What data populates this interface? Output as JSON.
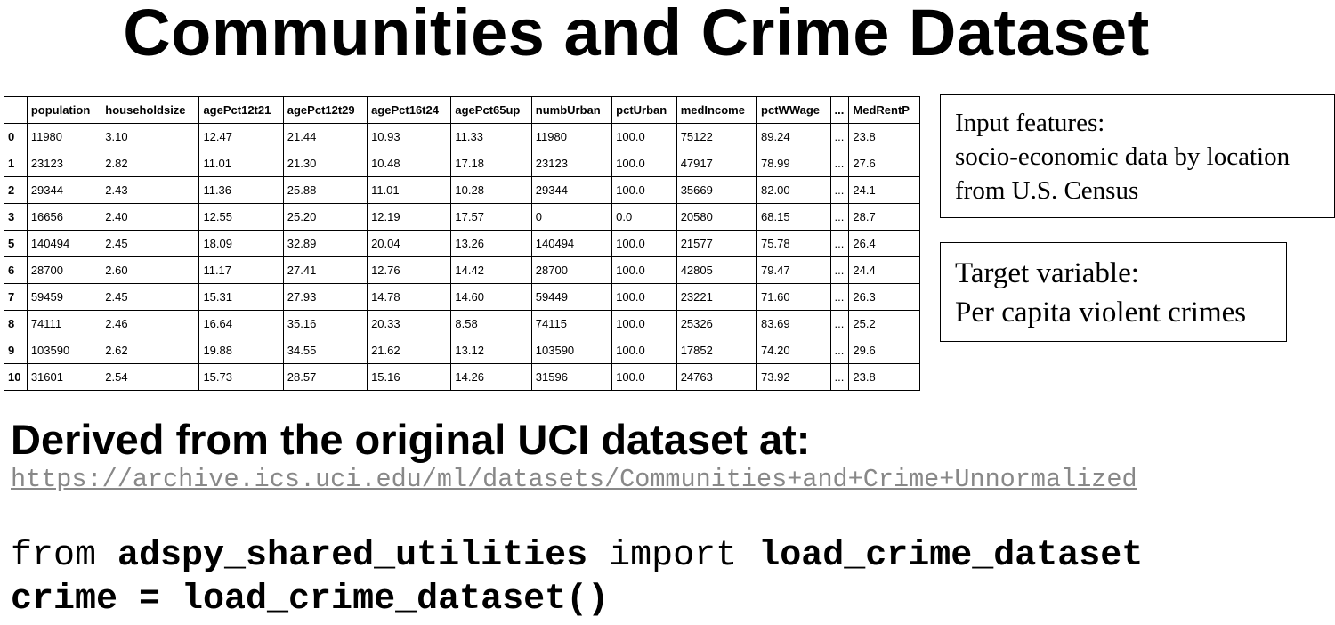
{
  "title": "Communities and Crime Dataset",
  "table": {
    "columns": [
      "",
      "population",
      "householdsize",
      "agePct12t21",
      "agePct12t29",
      "agePct16t24",
      "agePct65up",
      "numbUrban",
      "pctUrban",
      "medIncome",
      "pctWWage",
      "...",
      "MedRentP"
    ],
    "rows": [
      [
        "0",
        "11980",
        "3.10",
        "12.47",
        "21.44",
        "10.93",
        "11.33",
        "11980",
        "100.0",
        "75122",
        "89.24",
        "...",
        "23.8"
      ],
      [
        "1",
        "23123",
        "2.82",
        "11.01",
        "21.30",
        "10.48",
        "17.18",
        "23123",
        "100.0",
        "47917",
        "78.99",
        "...",
        "27.6"
      ],
      [
        "2",
        "29344",
        "2.43",
        "11.36",
        "25.88",
        "11.01",
        "10.28",
        "29344",
        "100.0",
        "35669",
        "82.00",
        "...",
        "24.1"
      ],
      [
        "3",
        "16656",
        "2.40",
        "12.55",
        "25.20",
        "12.19",
        "17.57",
        "0",
        "0.0",
        "20580",
        "68.15",
        "...",
        "28.7"
      ],
      [
        "5",
        "140494",
        "2.45",
        "18.09",
        "32.89",
        "20.04",
        "13.26",
        "140494",
        "100.0",
        "21577",
        "75.78",
        "...",
        "26.4"
      ],
      [
        "6",
        "28700",
        "2.60",
        "11.17",
        "27.41",
        "12.76",
        "14.42",
        "28700",
        "100.0",
        "42805",
        "79.47",
        "...",
        "24.4"
      ],
      [
        "7",
        "59459",
        "2.45",
        "15.31",
        "27.93",
        "14.78",
        "14.60",
        "59449",
        "100.0",
        "23221",
        "71.60",
        "...",
        "26.3"
      ],
      [
        "8",
        "74111",
        "2.46",
        "16.64",
        "35.16",
        "20.33",
        "8.58",
        "74115",
        "100.0",
        "25326",
        "83.69",
        "...",
        "25.2"
      ],
      [
        "9",
        "103590",
        "2.62",
        "19.88",
        "34.55",
        "21.62",
        "13.12",
        "103590",
        "100.0",
        "17852",
        "74.20",
        "...",
        "29.6"
      ],
      [
        "10",
        "31601",
        "2.54",
        "15.73",
        "28.57",
        "15.16",
        "14.26",
        "31596",
        "100.0",
        "24763",
        "73.92",
        "...",
        "23.8"
      ]
    ]
  },
  "input_box": {
    "line1": "Input features:",
    "line2": "socio-economic data by location",
    "line3": "from U.S. Census"
  },
  "target_box": {
    "line1": "Target variable:",
    "line2": "Per capita violent crimes"
  },
  "derived_text": "Derived from the original UCI dataset at:",
  "url": "https://archive.ics.uci.edu/ml/datasets/Communities+and+Crime+Unnormalized",
  "code": {
    "kw_from": "from",
    "module": "adspy_shared_utilities",
    "kw_import": "import",
    "func": "load_crime_dataset",
    "line2": "crime = load_crime_dataset()"
  }
}
